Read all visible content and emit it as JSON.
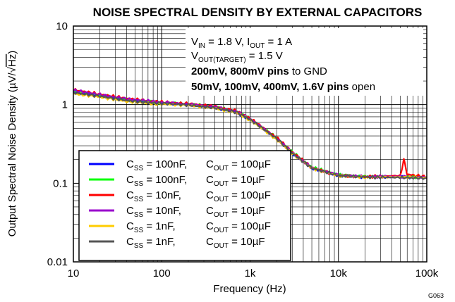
{
  "chart_data": {
    "type": "line",
    "title": "NOISE SPECTRAL DENSITY BY EXTERNAL CAPACITORS",
    "xlabel": "Frequency (Hz)",
    "ylabel_text": "Output Spectral Noise Density (µV/",
    "ylabel_radical": "Hz",
    "ylabel_close": ")",
    "x_scale": "log",
    "y_scale": "log",
    "xlim": [
      10,
      100000
    ],
    "ylim": [
      0.01,
      10
    ],
    "x_ticks": [
      10,
      100,
      1000,
      10000,
      100000
    ],
    "x_tick_labels": [
      "10",
      "100",
      "1k",
      "10k",
      "100k"
    ],
    "y_ticks": [
      0.01,
      0.1,
      1,
      10
    ],
    "y_tick_labels": [
      "0.01",
      "0.1",
      "1",
      "10"
    ],
    "grid": true,
    "figure_code": "G063",
    "conditions": {
      "line1": {
        "v": "V",
        "v_sub": "IN",
        "mid": " = 1.8 V, I",
        "i_sub": "OUT",
        "end": " = 1 A"
      },
      "line2": {
        "v": "V",
        "v_sub": "OUT(TARGET)",
        "end": " = 1.5 V"
      },
      "line3": {
        "bold": "200mV, 800mV pins",
        "normal": " to GND"
      },
      "line4": {
        "bold": "50mV, 100mV, 400mV, 1.6V pins",
        "normal": " open"
      }
    },
    "legend_position": "lower-left",
    "series": [
      {
        "name": "CSS = 100nF, COUT = 100µF",
        "css": "100nF",
        "cout": "100µF",
        "color": "#0000ff",
        "x": [
          10,
          20,
          40,
          70,
          100,
          200,
          400,
          700,
          1000,
          2000,
          3000,
          5000,
          10000,
          20000,
          50000,
          100000
        ],
        "y": [
          1.45,
          1.3,
          1.15,
          1.08,
          1.05,
          1.0,
          0.92,
          0.8,
          0.65,
          0.37,
          0.24,
          0.155,
          0.125,
          0.12,
          0.12,
          0.118
        ]
      },
      {
        "name": "CSS = 100nF, COUT = 10µF",
        "css": "100nF",
        "cout": "10µF",
        "color": "#00ff00",
        "x": [
          10,
          20,
          40,
          70,
          100,
          200,
          400,
          700,
          1000,
          2000,
          3000,
          5000,
          10000,
          20000,
          50000,
          100000
        ],
        "y": [
          1.5,
          1.33,
          1.17,
          1.1,
          1.06,
          1.02,
          0.94,
          0.82,
          0.66,
          0.38,
          0.25,
          0.16,
          0.128,
          0.122,
          0.121,
          0.12
        ]
      },
      {
        "name": "CSS = 10nF, COUT = 100µF",
        "css": "10nF",
        "cout": "100µF",
        "color": "#ff0000",
        "x": [
          10,
          20,
          40,
          70,
          100,
          200,
          400,
          700,
          1000,
          2000,
          3000,
          5000,
          10000,
          20000,
          50000,
          55000,
          60000,
          100000
        ],
        "y": [
          1.55,
          1.36,
          1.2,
          1.12,
          1.08,
          1.03,
          0.95,
          0.83,
          0.67,
          0.38,
          0.25,
          0.158,
          0.126,
          0.121,
          0.125,
          0.2,
          0.13,
          0.12
        ]
      },
      {
        "name": "CSS = 10nF, COUT = 10µF",
        "css": "10nF",
        "cout": "10µF",
        "color": "#9900cc",
        "x": [
          10,
          20,
          40,
          70,
          100,
          200,
          400,
          700,
          1000,
          2000,
          3000,
          5000,
          10000,
          20000,
          50000,
          100000
        ],
        "y": [
          1.52,
          1.34,
          1.18,
          1.11,
          1.07,
          1.01,
          0.93,
          0.81,
          0.66,
          0.37,
          0.245,
          0.157,
          0.127,
          0.121,
          0.122,
          0.119
        ]
      },
      {
        "name": "CSS = 1nF, COUT = 100µF",
        "css": "1nF",
        "cout": "100µF",
        "color": "#ffcc00",
        "x": [
          10,
          20,
          40,
          70,
          100,
          200,
          400,
          700,
          1000,
          2000,
          3000,
          5000,
          10000,
          20000,
          50000,
          100000
        ],
        "y": [
          1.38,
          1.25,
          1.1,
          1.04,
          1.02,
          0.98,
          0.9,
          0.79,
          0.64,
          0.36,
          0.24,
          0.155,
          0.124,
          0.119,
          0.12,
          0.118
        ]
      },
      {
        "name": "CSS = 1nF, COUT = 10µF",
        "css": "1nF",
        "cout": "10µF",
        "color": "#555555",
        "x": [
          10,
          20,
          40,
          70,
          100,
          200,
          400,
          700,
          1000,
          2000,
          3000,
          5000,
          10000,
          20000,
          50000,
          100000
        ],
        "y": [
          1.42,
          1.28,
          1.13,
          1.06,
          1.04,
          0.99,
          0.91,
          0.8,
          0.65,
          0.37,
          0.242,
          0.156,
          0.125,
          0.12,
          0.118,
          0.116
        ]
      }
    ]
  }
}
